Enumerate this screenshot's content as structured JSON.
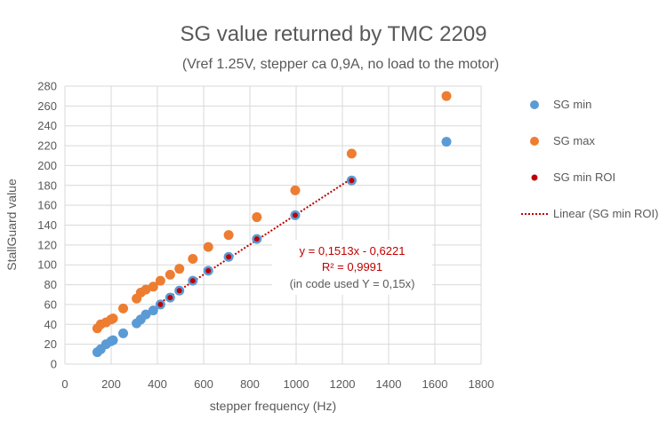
{
  "chart_data": {
    "type": "scatter",
    "title": "SG value returned by TMC 2209",
    "subtitle": "(Vref 1.25V, stepper ca 0,9A, no load to the motor)",
    "xlabel": "stepper frequency (Hz)",
    "ylabel": "StallGuard value",
    "xlim": [
      0,
      1800
    ],
    "ylim": [
      0,
      280
    ],
    "xticks": [
      0,
      200,
      400,
      600,
      800,
      1000,
      1200,
      1400,
      1600,
      1800
    ],
    "yticks": [
      0,
      20,
      40,
      60,
      80,
      100,
      120,
      140,
      160,
      180,
      200,
      220,
      240,
      260,
      280
    ],
    "grid": true,
    "legend_position": "right",
    "series": [
      {
        "name": "SG min",
        "color": "#5B9BD5",
        "points": [
          [
            140,
            12
          ],
          [
            155,
            15
          ],
          [
            178,
            20
          ],
          [
            200,
            23
          ],
          [
            208,
            24
          ],
          [
            252,
            31
          ],
          [
            310,
            41
          ],
          [
            328,
            45
          ],
          [
            350,
            50
          ],
          [
            382,
            54
          ],
          [
            413,
            60
          ],
          [
            455,
            67
          ],
          [
            495,
            74
          ],
          [
            553,
            84
          ],
          [
            620,
            94
          ],
          [
            708,
            108
          ],
          [
            830,
            126
          ],
          [
            996,
            150
          ],
          [
            1240,
            185
          ],
          [
            1650,
            224
          ]
        ]
      },
      {
        "name": "SG max",
        "color": "#ED7D31",
        "points": [
          [
            140,
            36
          ],
          [
            155,
            40
          ],
          [
            178,
            42
          ],
          [
            200,
            45
          ],
          [
            208,
            46
          ],
          [
            252,
            56
          ],
          [
            310,
            66
          ],
          [
            328,
            72
          ],
          [
            350,
            75
          ],
          [
            382,
            78
          ],
          [
            413,
            84
          ],
          [
            455,
            90
          ],
          [
            495,
            96
          ],
          [
            553,
            106
          ],
          [
            620,
            118
          ],
          [
            708,
            130
          ],
          [
            830,
            148
          ],
          [
            996,
            175
          ],
          [
            1240,
            212
          ],
          [
            1650,
            270
          ]
        ]
      },
      {
        "name": "SG min ROI",
        "color": "#C00000",
        "points": [
          [
            413,
            60
          ],
          [
            455,
            67
          ],
          [
            495,
            74
          ],
          [
            553,
            84
          ],
          [
            620,
            94
          ],
          [
            708,
            108
          ],
          [
            830,
            126
          ],
          [
            996,
            150
          ],
          [
            1240,
            185
          ]
        ]
      }
    ],
    "trendline": {
      "name": "Linear (SG min ROI)",
      "color": "#C00000",
      "slope": 0.1513,
      "intercept": -0.6221,
      "x_range": [
        413,
        1240
      ],
      "equation": "y = 0,1513x - 0,6221",
      "r2": "R² = 0,9991",
      "note": "(in code used Y = 0,15x)"
    }
  }
}
